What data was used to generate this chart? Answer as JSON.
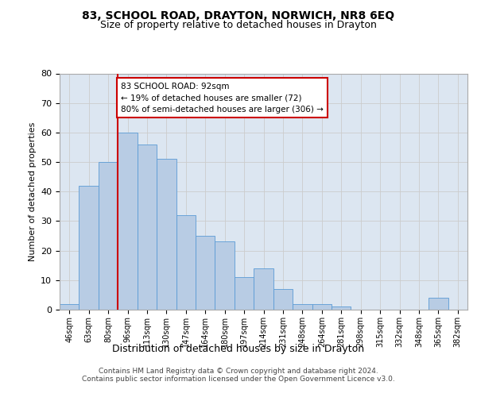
{
  "title": "83, SCHOOL ROAD, DRAYTON, NORWICH, NR8 6EQ",
  "subtitle": "Size of property relative to detached houses in Drayton",
  "xlabel": "Distribution of detached houses by size in Drayton",
  "ylabel": "Number of detached properties",
  "categories": [
    "46sqm",
    "63sqm",
    "80sqm",
    "96sqm",
    "113sqm",
    "130sqm",
    "147sqm",
    "164sqm",
    "180sqm",
    "197sqm",
    "214sqm",
    "231sqm",
    "248sqm",
    "264sqm",
    "281sqm",
    "298sqm",
    "315sqm",
    "332sqm",
    "348sqm",
    "365sqm",
    "382sqm"
  ],
  "values": [
    2,
    42,
    50,
    60,
    56,
    51,
    32,
    25,
    23,
    11,
    14,
    7,
    2,
    2,
    1,
    0,
    0,
    0,
    0,
    4,
    0
  ],
  "bar_color": "#b8cce4",
  "bar_edge_color": "#5b9bd5",
  "vline_color": "#cc0000",
  "annotation_line1": "83 SCHOOL ROAD: 92sqm",
  "annotation_line2": "← 19% of detached houses are smaller (72)",
  "annotation_line3": "80% of semi-detached houses are larger (306) →",
  "annotation_box_color": "#cc0000",
  "ylim": [
    0,
    80
  ],
  "yticks": [
    0,
    10,
    20,
    30,
    40,
    50,
    60,
    70,
    80
  ],
  "grid_color": "#cccccc",
  "background_color": "#dce6f1",
  "footer1": "Contains HM Land Registry data © Crown copyright and database right 2024.",
  "footer2": "Contains public sector information licensed under the Open Government Licence v3.0.",
  "title_fontsize": 10,
  "subtitle_fontsize": 9,
  "vline_bar_index": 2.5
}
